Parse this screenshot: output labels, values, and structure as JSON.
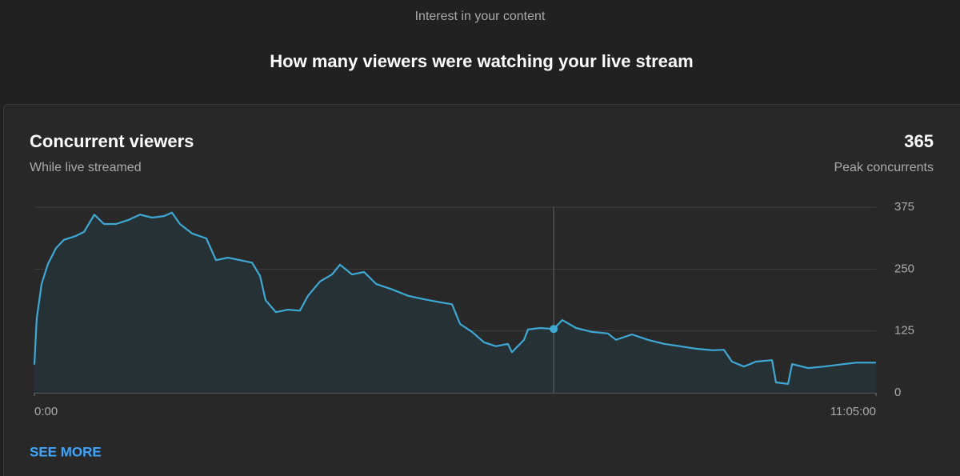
{
  "header": {
    "section": "Interest in your content",
    "title": "How many viewers were watching your live stream"
  },
  "chart_data": {
    "type": "line",
    "title": "Concurrent viewers",
    "subtitle": "While live streamed",
    "peak_value": 365,
    "peak_label": "Peak concurrents",
    "x": [
      0,
      110,
      340,
      640,
      1020,
      1400,
      1970,
      2350,
      2840,
      3300,
      3870,
      4440,
      5010,
      5580,
      6140,
      6520,
      6900,
      7470,
      8150,
      8610,
      9180,
      9750,
      10320,
      10700,
      10960,
      11450,
      12020,
      12590,
      12970,
      13540,
      14110,
      14490,
      15060,
      15630,
      16200,
      16950,
      17710,
      18470,
      19230,
      19800,
      20180,
      20750,
      21320,
      21880,
      22450,
      22640,
      23210,
      23400,
      23970,
      24620,
      25030,
      25680,
      26440,
      27190,
      27570,
      28330,
      29090,
      29850,
      30610,
      31370,
      32130,
      32690,
      33070,
      33640,
      34210,
      34970,
      35160,
      35730,
      35920,
      36680,
      37440,
      38190,
      38950,
      39900
    ],
    "series": [
      {
        "name": "Concurrent viewers",
        "color": "#3ea8d4",
        "values": [
          57,
          150,
          220,
          260,
          292,
          309,
          317,
          325,
          360,
          341,
          341,
          349,
          360,
          354,
          357,
          364,
          341,
          322,
          312,
          268,
          273,
          268,
          263,
          236,
          187,
          163,
          168,
          166,
          196,
          225,
          239,
          259,
          239,
          244,
          220,
          209,
          196,
          189,
          183,
          179,
          139,
          123,
          102,
          94,
          99,
          82,
          107,
          128,
          131,
          129,
          147,
          131,
          123,
          120,
          107,
          118,
          107,
          99,
          94,
          89,
          86,
          87,
          63,
          53,
          63,
          66,
          21,
          18,
          58,
          50,
          53,
          57,
          61,
          61
        ]
      }
    ],
    "highlighted_point": 49,
    "xlim": [
      0,
      39900
    ],
    "xticks": [
      {
        "value": 0,
        "label": "0:00"
      },
      {
        "value": 39900,
        "label": "11:05:00"
      }
    ],
    "ylim": [
      0,
      375
    ],
    "yticks": [
      0,
      125,
      250,
      375
    ],
    "grid": true
  },
  "footer": {
    "link": "SEE MORE"
  }
}
